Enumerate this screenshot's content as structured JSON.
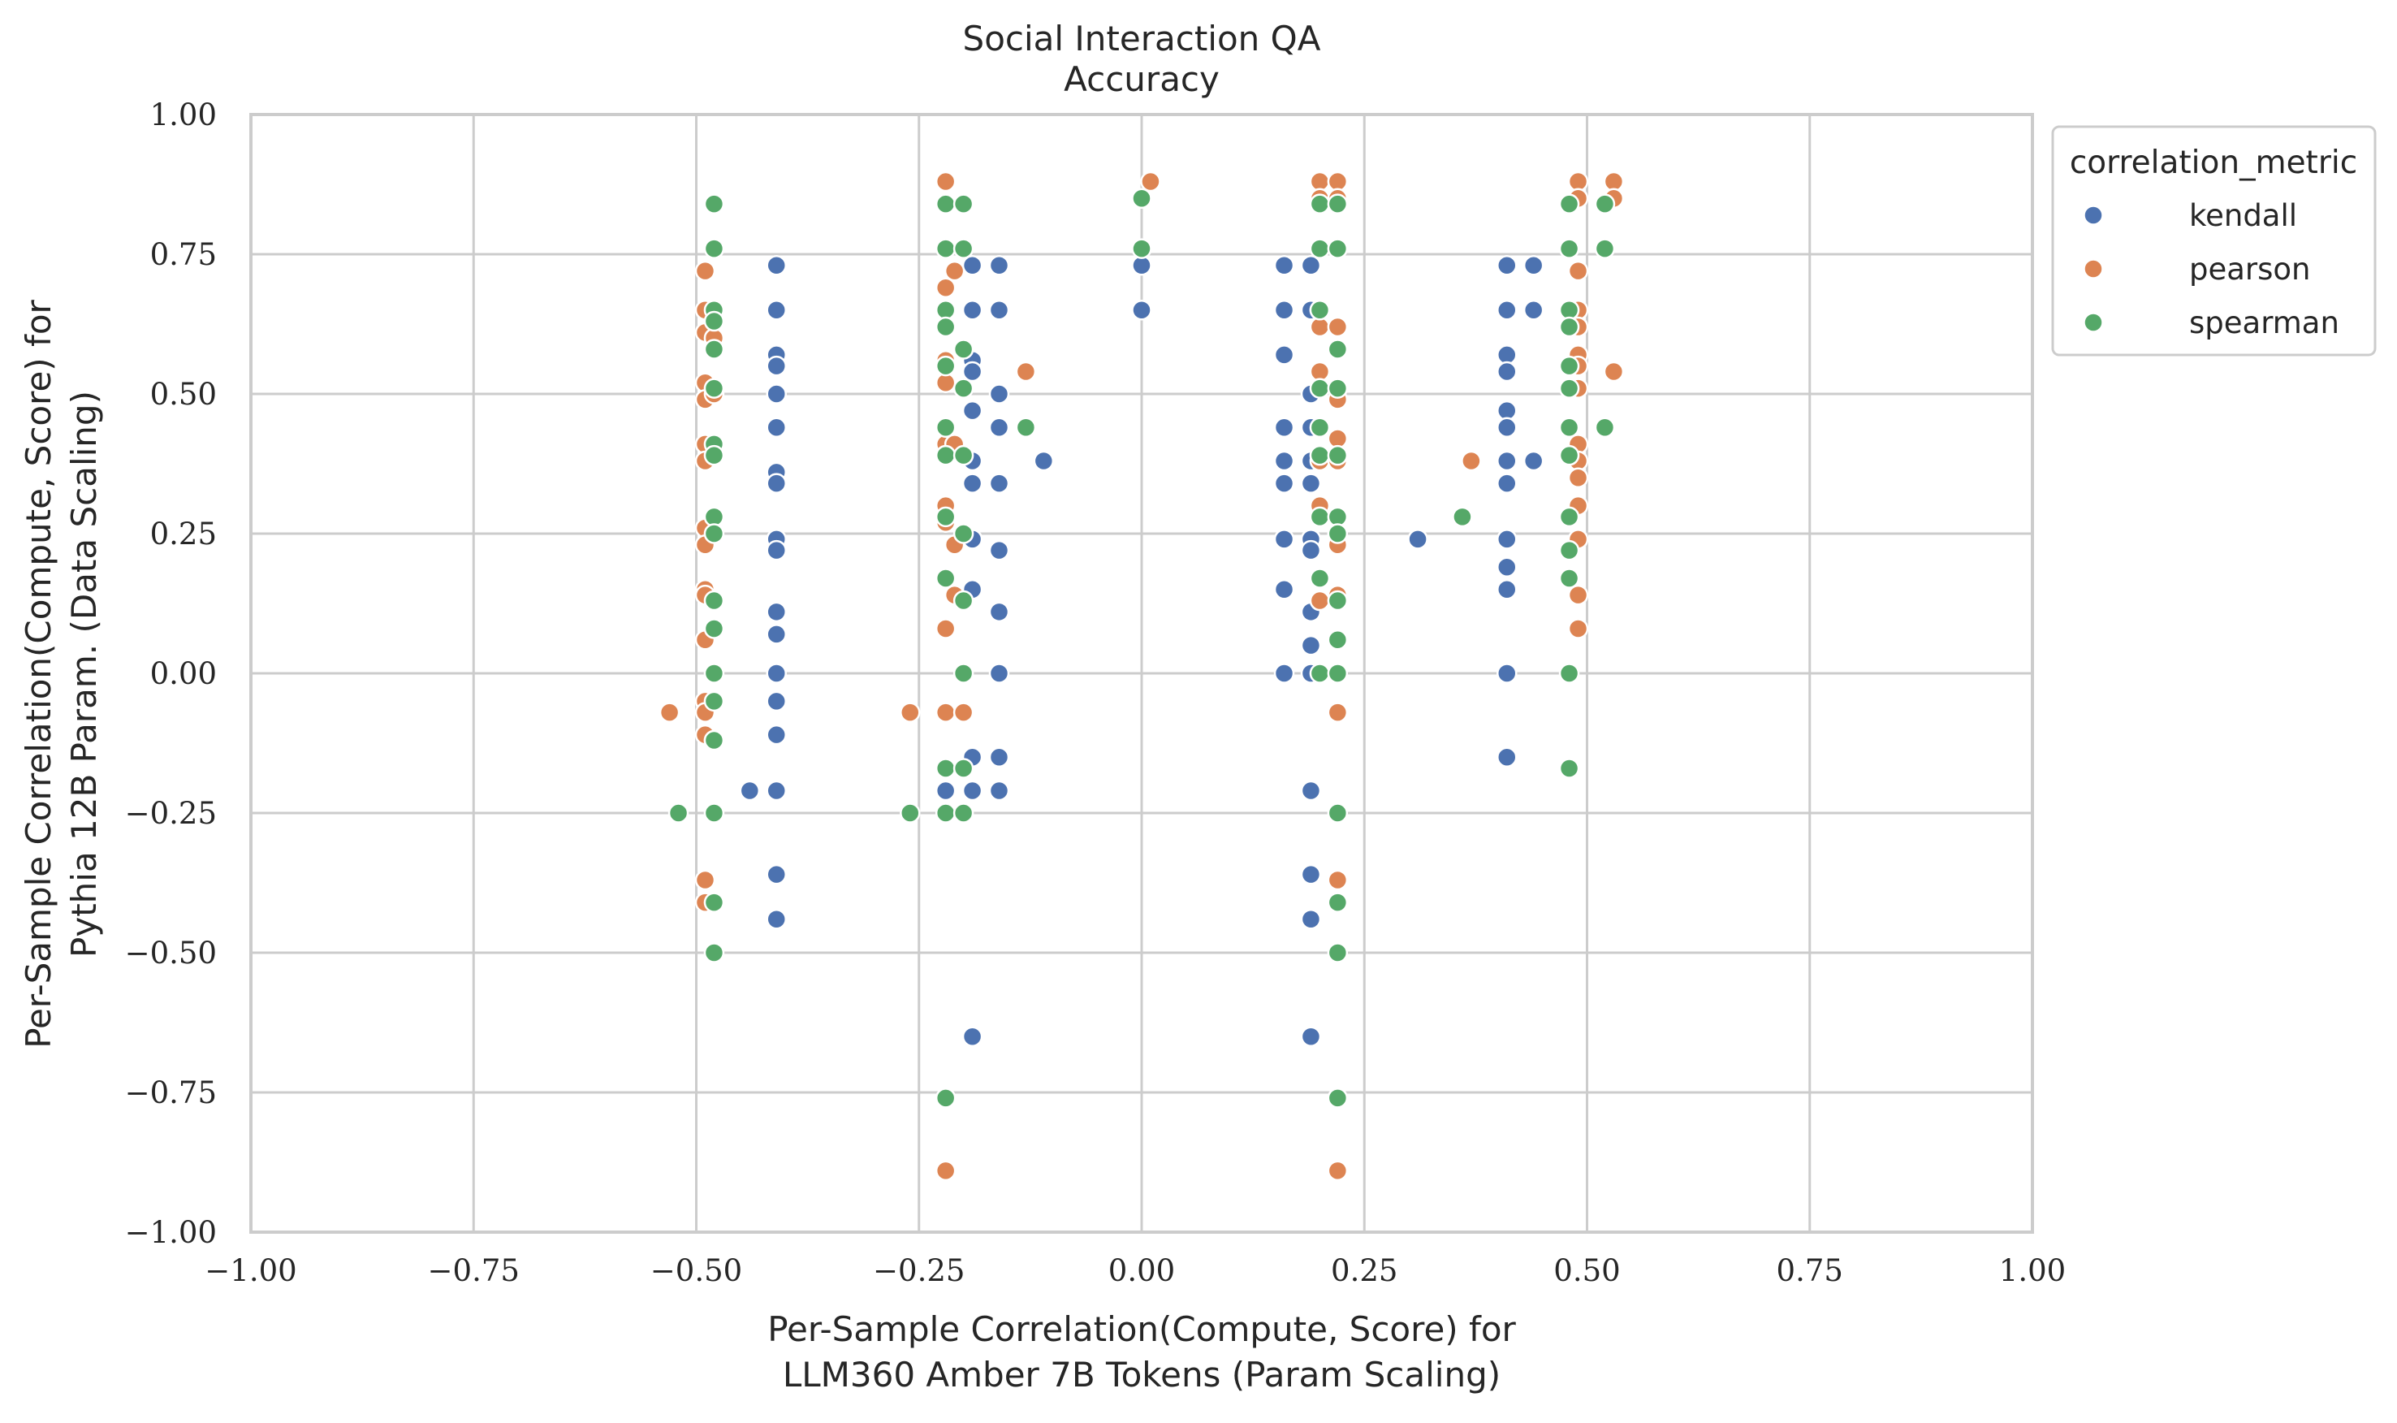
{
  "chart_data": {
    "type": "scatter",
    "title_lines": [
      "Social Interaction QA",
      "Accuracy"
    ],
    "xlabel_lines": [
      "Per-Sample Correlation(Compute, Score) for",
      "LLM360 Amber 7B Tokens (Param Scaling)"
    ],
    "ylabel_lines": [
      "Per-Sample Correlation(Compute, Score) for",
      "Pythia 12B Param. (Data Scaling)"
    ],
    "xlim": [
      -1.0,
      1.0
    ],
    "ylim": [
      -1.0,
      1.0
    ],
    "xticks": [
      -1.0,
      -0.75,
      -0.5,
      -0.25,
      0.0,
      0.25,
      0.5,
      0.75,
      1.0
    ],
    "yticks": [
      -1.0,
      -0.75,
      -0.5,
      -0.25,
      0.0,
      0.25,
      0.5,
      0.75,
      1.0
    ],
    "xtick_labels": [
      "−1.00",
      "−0.75",
      "−0.50",
      "−0.25",
      "0.00",
      "0.25",
      "0.50",
      "0.75",
      "1.00"
    ],
    "ytick_labels": [
      "−1.00",
      "−0.75",
      "−0.50",
      "−0.25",
      "0.00",
      "0.25",
      "0.50",
      "0.75",
      "1.00"
    ],
    "grid": true,
    "legend": {
      "title": "correlation_metric",
      "placement": "outside-top-right"
    },
    "series": [
      {
        "name": "kendall",
        "color": "#4c72b0",
        "points": [
          [
            -0.41,
            0.73
          ],
          [
            -0.41,
            0.65
          ],
          [
            -0.41,
            0.57
          ],
          [
            -0.41,
            0.55
          ],
          [
            -0.41,
            0.5
          ],
          [
            -0.41,
            0.44
          ],
          [
            -0.41,
            0.36
          ],
          [
            -0.41,
            0.34
          ],
          [
            -0.41,
            0.24
          ],
          [
            -0.41,
            0.22
          ],
          [
            -0.41,
            0.11
          ],
          [
            -0.41,
            0.07
          ],
          [
            -0.41,
            0.0
          ],
          [
            -0.41,
            -0.05
          ],
          [
            -0.41,
            -0.11
          ],
          [
            -0.41,
            -0.21
          ],
          [
            -0.41,
            -0.36
          ],
          [
            -0.41,
            -0.44
          ],
          [
            -0.44,
            -0.21
          ],
          [
            -0.19,
            0.73
          ],
          [
            -0.16,
            0.73
          ],
          [
            -0.19,
            0.65
          ],
          [
            -0.16,
            0.65
          ],
          [
            -0.19,
            0.56
          ],
          [
            -0.19,
            0.54
          ],
          [
            -0.16,
            0.5
          ],
          [
            -0.19,
            0.47
          ],
          [
            -0.16,
            0.44
          ],
          [
            -0.19,
            0.38
          ],
          [
            -0.19,
            0.34
          ],
          [
            -0.16,
            0.34
          ],
          [
            -0.19,
            0.24
          ],
          [
            -0.16,
            0.22
          ],
          [
            -0.19,
            0.15
          ],
          [
            -0.16,
            0.11
          ],
          [
            -0.16,
            0.0
          ],
          [
            -0.19,
            -0.15
          ],
          [
            -0.16,
            -0.15
          ],
          [
            -0.19,
            -0.21
          ],
          [
            -0.16,
            -0.21
          ],
          [
            -0.22,
            -0.21
          ],
          [
            -0.19,
            -0.65
          ],
          [
            -0.11,
            0.38
          ],
          [
            0.0,
            0.73
          ],
          [
            0.0,
            0.65
          ],
          [
            0.16,
            0.73
          ],
          [
            0.19,
            0.73
          ],
          [
            0.16,
            0.65
          ],
          [
            0.19,
            0.65
          ],
          [
            0.16,
            0.57
          ],
          [
            0.19,
            0.5
          ],
          [
            0.16,
            0.44
          ],
          [
            0.19,
            0.44
          ],
          [
            0.16,
            0.38
          ],
          [
            0.19,
            0.38
          ],
          [
            0.16,
            0.34
          ],
          [
            0.19,
            0.34
          ],
          [
            0.16,
            0.24
          ],
          [
            0.19,
            0.24
          ],
          [
            0.19,
            0.22
          ],
          [
            0.16,
            0.15
          ],
          [
            0.19,
            0.11
          ],
          [
            0.19,
            0.05
          ],
          [
            0.16,
            0.0
          ],
          [
            0.19,
            0.0
          ],
          [
            0.19,
            -0.21
          ],
          [
            0.19,
            -0.36
          ],
          [
            0.19,
            -0.44
          ],
          [
            0.19,
            -0.65
          ],
          [
            0.31,
            0.24
          ],
          [
            0.41,
            0.73
          ],
          [
            0.44,
            0.73
          ],
          [
            0.41,
            0.65
          ],
          [
            0.44,
            0.65
          ],
          [
            0.41,
            0.57
          ],
          [
            0.41,
            0.54
          ],
          [
            0.41,
            0.47
          ],
          [
            0.41,
            0.44
          ],
          [
            0.41,
            0.38
          ],
          [
            0.44,
            0.38
          ],
          [
            0.41,
            0.34
          ],
          [
            0.41,
            0.24
          ],
          [
            0.41,
            0.19
          ],
          [
            0.41,
            0.15
          ],
          [
            0.41,
            0.0
          ],
          [
            0.41,
            -0.15
          ],
          [
            0.48,
            0.76
          ]
        ]
      },
      {
        "name": "pearson",
        "color": "#dd8452",
        "points": [
          [
            -0.49,
            0.72
          ],
          [
            -0.49,
            0.65
          ],
          [
            -0.49,
            0.61
          ],
          [
            -0.48,
            0.6
          ],
          [
            -0.49,
            0.52
          ],
          [
            -0.49,
            0.49
          ],
          [
            -0.48,
            0.5
          ],
          [
            -0.49,
            0.41
          ],
          [
            -0.49,
            0.38
          ],
          [
            -0.49,
            0.26
          ],
          [
            -0.49,
            0.23
          ],
          [
            -0.49,
            0.15
          ],
          [
            -0.49,
            0.14
          ],
          [
            -0.49,
            0.06
          ],
          [
            -0.49,
            -0.05
          ],
          [
            -0.49,
            -0.07
          ],
          [
            -0.49,
            -0.11
          ],
          [
            -0.48,
            -0.12
          ],
          [
            -0.53,
            -0.07
          ],
          [
            -0.49,
            -0.37
          ],
          [
            -0.49,
            -0.41
          ],
          [
            -0.22,
            0.88
          ],
          [
            -0.22,
            0.69
          ],
          [
            -0.21,
            0.72
          ],
          [
            -0.22,
            0.56
          ],
          [
            -0.22,
            0.52
          ],
          [
            -0.22,
            0.41
          ],
          [
            -0.21,
            0.41
          ],
          [
            -0.22,
            0.39
          ],
          [
            -0.22,
            0.3
          ],
          [
            -0.22,
            0.27
          ],
          [
            -0.21,
            0.23
          ],
          [
            -0.21,
            0.14
          ],
          [
            -0.22,
            0.08
          ],
          [
            -0.22,
            -0.07
          ],
          [
            -0.2,
            -0.07
          ],
          [
            -0.26,
            -0.07
          ],
          [
            -0.22,
            -0.89
          ],
          [
            -0.13,
            0.54
          ],
          [
            0.01,
            0.88
          ],
          [
            0.0,
            0.85
          ],
          [
            0.2,
            0.88
          ],
          [
            0.22,
            0.88
          ],
          [
            0.2,
            0.85
          ],
          [
            0.22,
            0.85
          ],
          [
            0.2,
            0.65
          ],
          [
            0.2,
            0.62
          ],
          [
            0.22,
            0.62
          ],
          [
            0.2,
            0.54
          ],
          [
            0.22,
            0.51
          ],
          [
            0.22,
            0.49
          ],
          [
            0.22,
            0.42
          ],
          [
            0.2,
            0.38
          ],
          [
            0.22,
            0.38
          ],
          [
            0.2,
            0.3
          ],
          [
            0.22,
            0.28
          ],
          [
            0.22,
            0.25
          ],
          [
            0.22,
            0.23
          ],
          [
            0.22,
            0.14
          ],
          [
            0.2,
            0.13
          ],
          [
            0.22,
            -0.07
          ],
          [
            0.22,
            -0.37
          ],
          [
            0.22,
            -0.89
          ],
          [
            0.37,
            0.38
          ],
          [
            0.49,
            0.88
          ],
          [
            0.53,
            0.88
          ],
          [
            0.49,
            0.85
          ],
          [
            0.53,
            0.85
          ],
          [
            0.49,
            0.72
          ],
          [
            0.49,
            0.65
          ],
          [
            0.49,
            0.62
          ],
          [
            0.49,
            0.57
          ],
          [
            0.49,
            0.55
          ],
          [
            0.53,
            0.54
          ],
          [
            0.49,
            0.51
          ],
          [
            0.49,
            0.41
          ],
          [
            0.49,
            0.38
          ],
          [
            0.49,
            0.35
          ],
          [
            0.49,
            0.3
          ],
          [
            0.49,
            0.24
          ],
          [
            0.49,
            0.14
          ],
          [
            0.49,
            0.08
          ]
        ]
      },
      {
        "name": "spearman",
        "color": "#55a868",
        "points": [
          [
            -0.48,
            0.84
          ],
          [
            -0.48,
            0.76
          ],
          [
            -0.48,
            0.65
          ],
          [
            -0.48,
            0.63
          ],
          [
            -0.48,
            0.58
          ],
          [
            -0.48,
            0.51
          ],
          [
            -0.48,
            0.41
          ],
          [
            -0.48,
            0.39
          ],
          [
            -0.48,
            0.28
          ],
          [
            -0.48,
            0.25
          ],
          [
            -0.48,
            0.13
          ],
          [
            -0.48,
            0.08
          ],
          [
            -0.48,
            0.0
          ],
          [
            -0.48,
            -0.05
          ],
          [
            -0.48,
            -0.12
          ],
          [
            -0.48,
            -0.25
          ],
          [
            -0.52,
            -0.25
          ],
          [
            -0.48,
            -0.41
          ],
          [
            -0.48,
            -0.5
          ],
          [
            -0.22,
            0.84
          ],
          [
            -0.2,
            0.84
          ],
          [
            -0.22,
            0.76
          ],
          [
            -0.2,
            0.76
          ],
          [
            -0.22,
            0.65
          ],
          [
            -0.22,
            0.62
          ],
          [
            -0.2,
            0.58
          ],
          [
            -0.22,
            0.55
          ],
          [
            -0.2,
            0.51
          ],
          [
            -0.22,
            0.44
          ],
          [
            -0.22,
            0.39
          ],
          [
            -0.2,
            0.39
          ],
          [
            -0.22,
            0.28
          ],
          [
            -0.2,
            0.25
          ],
          [
            -0.22,
            0.17
          ],
          [
            -0.2,
            0.13
          ],
          [
            -0.2,
            0.0
          ],
          [
            -0.22,
            -0.17
          ],
          [
            -0.2,
            -0.17
          ],
          [
            -0.22,
            -0.25
          ],
          [
            -0.2,
            -0.25
          ],
          [
            -0.26,
            -0.25
          ],
          [
            -0.22,
            -0.76
          ],
          [
            -0.13,
            0.44
          ],
          [
            0.0,
            0.85
          ],
          [
            0.0,
            0.76
          ],
          [
            0.2,
            0.84
          ],
          [
            0.22,
            0.84
          ],
          [
            0.2,
            0.76
          ],
          [
            0.22,
            0.76
          ],
          [
            0.2,
            0.65
          ],
          [
            0.22,
            0.58
          ],
          [
            0.2,
            0.51
          ],
          [
            0.22,
            0.51
          ],
          [
            0.2,
            0.44
          ],
          [
            0.2,
            0.39
          ],
          [
            0.22,
            0.39
          ],
          [
            0.2,
            0.28
          ],
          [
            0.22,
            0.28
          ],
          [
            0.22,
            0.25
          ],
          [
            0.2,
            0.17
          ],
          [
            0.22,
            0.13
          ],
          [
            0.22,
            0.06
          ],
          [
            0.2,
            0.0
          ],
          [
            0.22,
            0.0
          ],
          [
            0.22,
            -0.25
          ],
          [
            0.22,
            -0.41
          ],
          [
            0.22,
            -0.5
          ],
          [
            0.22,
            -0.76
          ],
          [
            0.36,
            0.28
          ],
          [
            0.48,
            0.84
          ],
          [
            0.52,
            0.84
          ],
          [
            0.48,
            0.76
          ],
          [
            0.52,
            0.76
          ],
          [
            0.48,
            0.65
          ],
          [
            0.48,
            0.62
          ],
          [
            0.48,
            0.55
          ],
          [
            0.48,
            0.51
          ],
          [
            0.48,
            0.44
          ],
          [
            0.52,
            0.44
          ],
          [
            0.48,
            0.39
          ],
          [
            0.48,
            0.28
          ],
          [
            0.48,
            0.22
          ],
          [
            0.48,
            0.17
          ],
          [
            0.48,
            0.0
          ],
          [
            0.48,
            -0.17
          ]
        ]
      }
    ]
  }
}
